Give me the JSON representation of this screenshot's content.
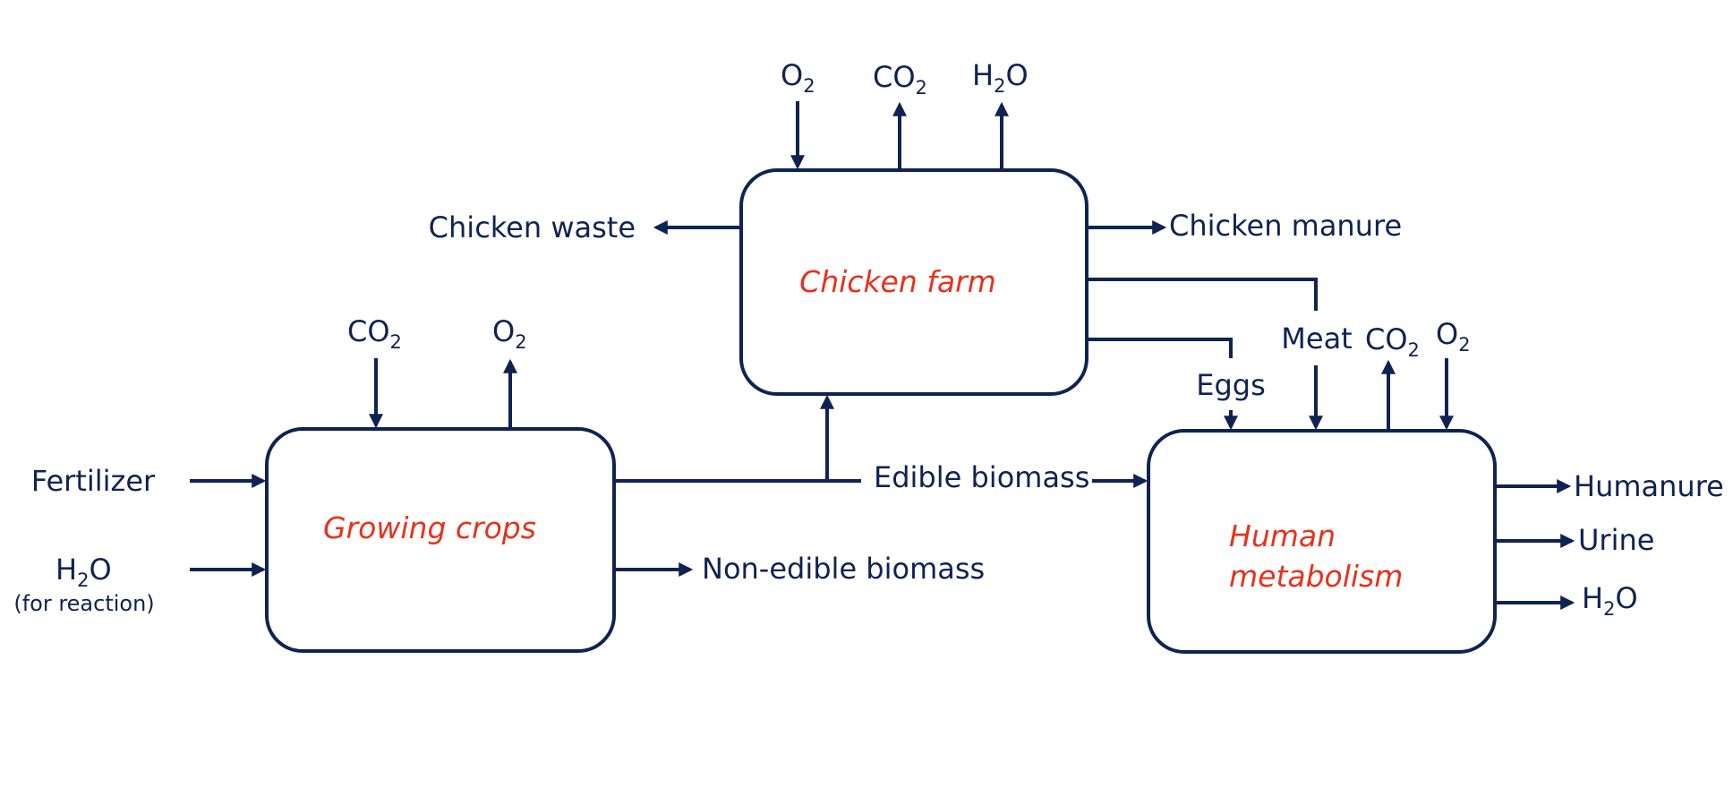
{
  "colors": {
    "stroke": "#0f2353",
    "process_label": "#e8311c",
    "background": "#ffffff"
  },
  "processes": {
    "chicken_farm": "Chicken farm",
    "growing_crops": "Growing crops",
    "human_metabolism_line1": "Human",
    "human_metabolism_line2": "metabolism"
  },
  "chemicals": {
    "o2": {
      "base": "O",
      "sub": "2"
    },
    "co2": {
      "base": "CO",
      "sub": "2"
    },
    "h2o": {
      "base": "H",
      "sub": "2",
      "tail": "O"
    }
  },
  "flows": {
    "chicken_waste": "Chicken waste",
    "chicken_manure": "Chicken manure",
    "meat": "Meat",
    "eggs": "Eggs",
    "edible_biomass": "Edible biomass",
    "non_edible_biomass": "Non-edible biomass",
    "fertilizer": "Fertilizer",
    "h2o_note": "(for reaction)",
    "humanure": "Humanure",
    "urine": "Urine"
  }
}
